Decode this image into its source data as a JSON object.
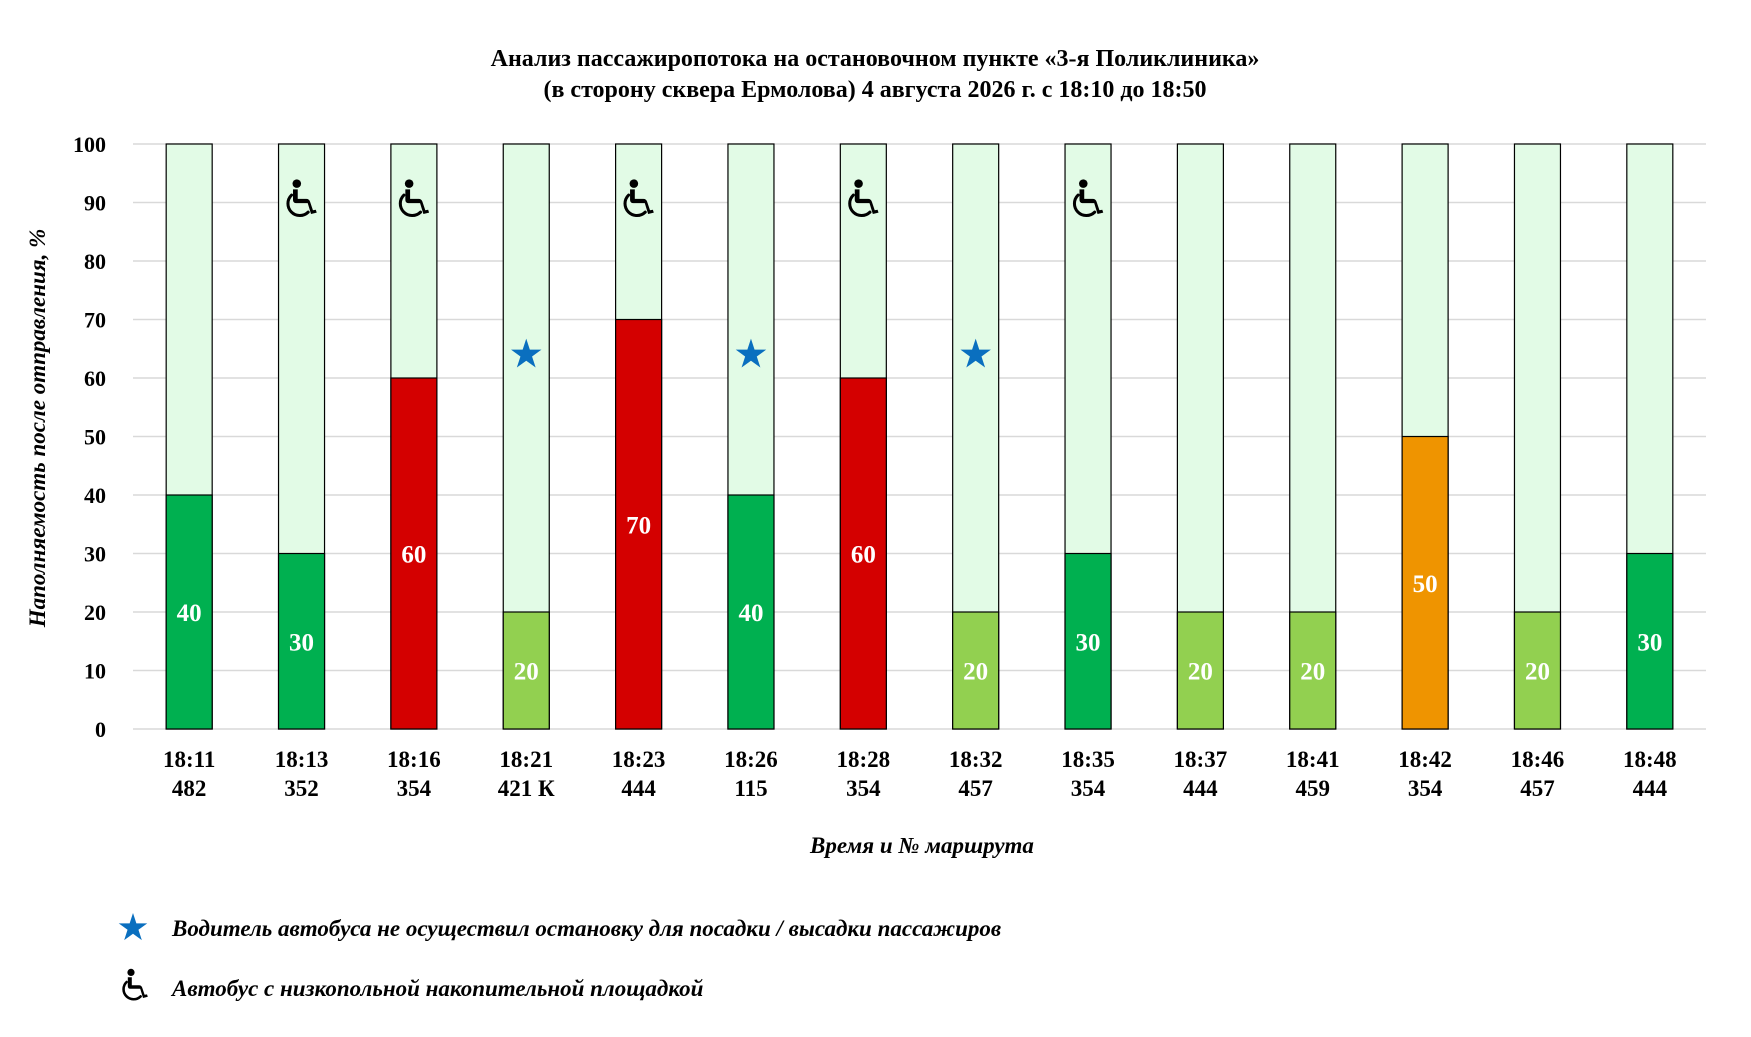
{
  "chart_data": {
    "type": "bar",
    "stacked": true,
    "title": "Анализ пассажиропотока на остановочном пункте «3-я Поликлиника»",
    "subtitle": "(в сторону сквера Ермолова) 4 августа 2026 г. с 18:10 до 18:50",
    "xlabel": "Время и № маршрута",
    "ylabel": "Наполняемость после отправления, %",
    "ylim": [
      0,
      100
    ],
    "yticks": [
      "0",
      "10",
      "20",
      "30",
      "40",
      "50",
      "60",
      "70",
      "80",
      "90",
      "100"
    ],
    "grid": true,
    "categories": [
      {
        "time": "18:11",
        "route": "482"
      },
      {
        "time": "18:13",
        "route": "352"
      },
      {
        "time": "18:16",
        "route": "354"
      },
      {
        "time": "18:21",
        "route": "421 К"
      },
      {
        "time": "18:23",
        "route": "444"
      },
      {
        "time": "18:26",
        "route": "115"
      },
      {
        "time": "18:28",
        "route": "354"
      },
      {
        "time": "18:32",
        "route": "457"
      },
      {
        "time": "18:35",
        "route": "354"
      },
      {
        "time": "18:37",
        "route": "444"
      },
      {
        "time": "18:41",
        "route": "459"
      },
      {
        "time": "18:42",
        "route": "354"
      },
      {
        "time": "18:46",
        "route": "457"
      },
      {
        "time": "18:48",
        "route": "444"
      }
    ],
    "values": [
      40,
      30,
      60,
      20,
      70,
      40,
      60,
      20,
      30,
      20,
      20,
      50,
      20,
      30
    ],
    "data_labels": [
      "40",
      "30",
      "60",
      "20",
      "70",
      "40",
      "60",
      "20",
      "30",
      "20",
      "20",
      "50",
      "20",
      "30"
    ],
    "bar_colors": [
      "#00b050",
      "#00b050",
      "#d40000",
      "#92d050",
      "#d40000",
      "#00b050",
      "#d40000",
      "#92d050",
      "#00b050",
      "#92d050",
      "#92d050",
      "#ef9400",
      "#92d050",
      "#00b050"
    ],
    "remainder_color": "#e2fbe6",
    "no_stop": [
      false,
      false,
      false,
      true,
      false,
      true,
      false,
      true,
      false,
      false,
      false,
      false,
      false,
      false
    ],
    "low_floor": [
      false,
      true,
      true,
      false,
      true,
      false,
      true,
      false,
      true,
      false,
      false,
      false,
      false,
      false
    ],
    "legend": [
      {
        "icon": "star-icon",
        "color": "#0a6fbf",
        "text": "Водитель автобуса не осуществил остановку для посадки / высадки пассажиров"
      },
      {
        "icon": "wheelchair-icon",
        "color": "#000000",
        "text": "Автобус с низкопольной накопительной площадкой"
      }
    ]
  }
}
